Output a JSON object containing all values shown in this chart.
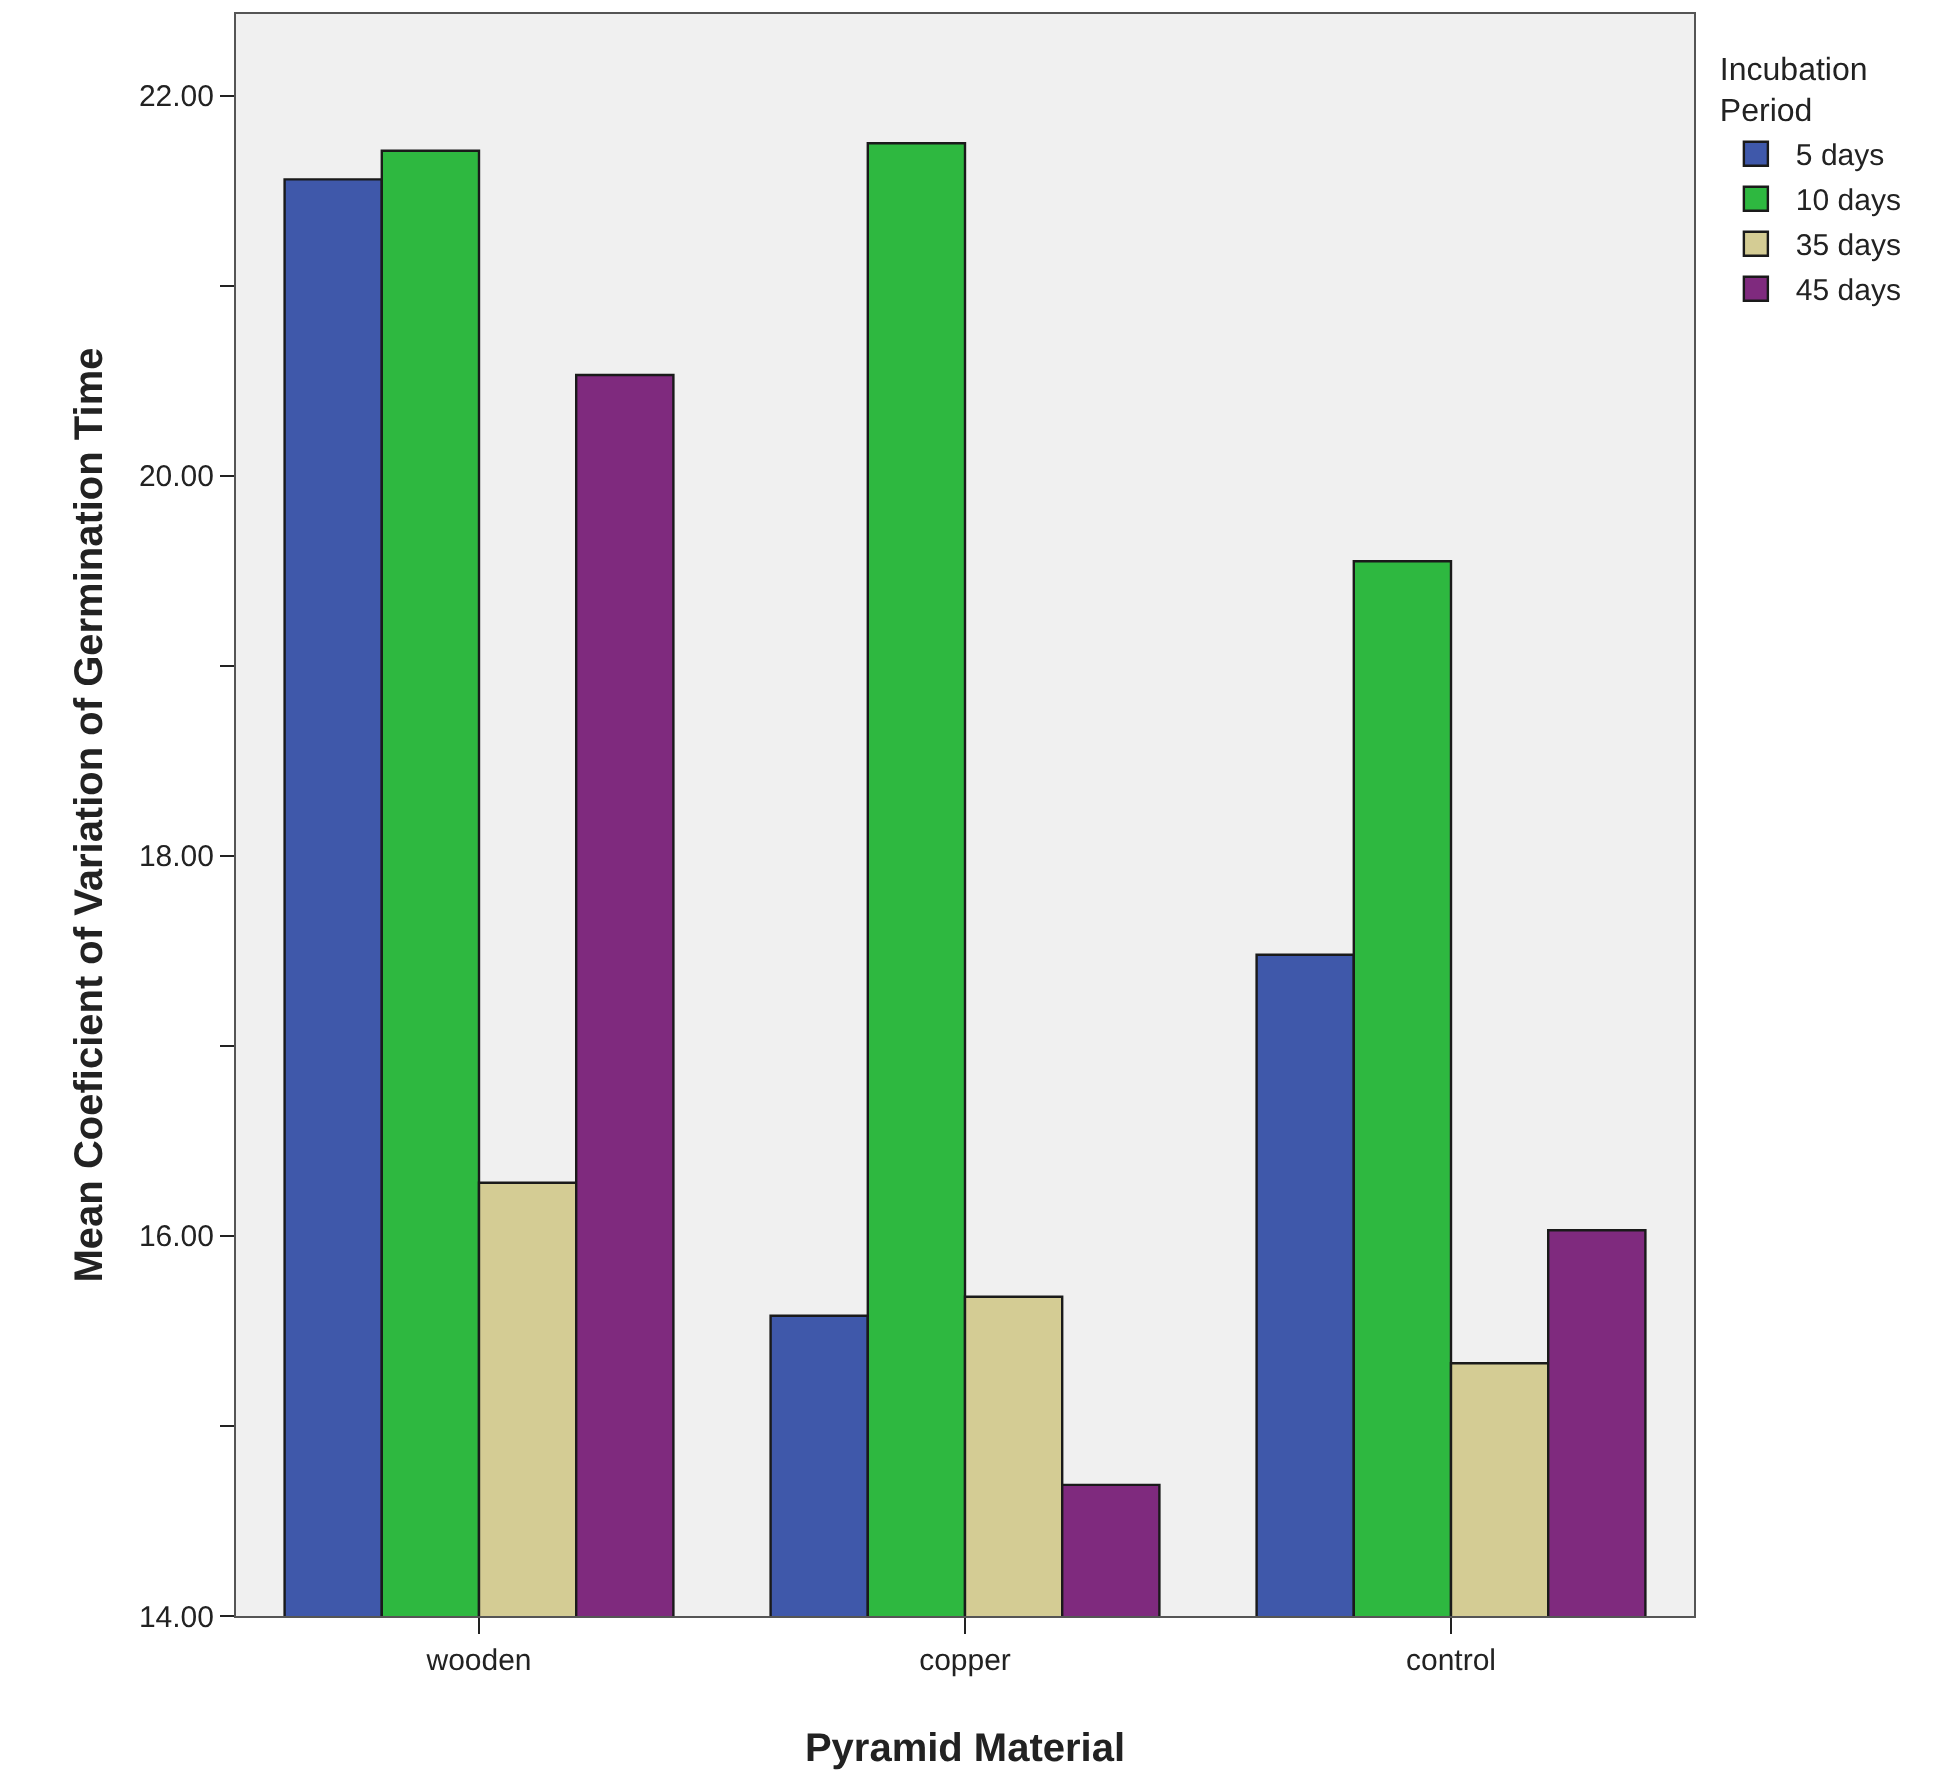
{
  "chart_data": {
    "type": "bar",
    "xlabel": "Pyramid Material",
    "ylabel": "Mean Coeficient of Variation of Germination Time",
    "legend_title": "Incubation Period",
    "categories": [
      "wooden",
      "copper",
      "control"
    ],
    "series": [
      {
        "name": "5 days",
        "color": "#3f58aa",
        "values": [
          21.56,
          15.58,
          17.48
        ]
      },
      {
        "name": "10 days",
        "color": "#2eb840",
        "values": [
          21.71,
          21.75,
          19.55
        ]
      },
      {
        "name": "35 days",
        "color": "#d4cc94",
        "values": [
          16.28,
          15.68,
          15.33
        ]
      },
      {
        "name": "45 days",
        "color": "#7f2a7e",
        "values": [
          20.53,
          14.69,
          16.03
        ]
      }
    ],
    "ylim": [
      14,
      22.43
    ],
    "yticks": [
      {
        "value": 14,
        "label": "14.00"
      },
      {
        "value": 15,
        "label": null
      },
      {
        "value": 16,
        "label": "16.00"
      },
      {
        "value": 17,
        "label": null
      },
      {
        "value": 18,
        "label": "18.00"
      },
      {
        "value": 19,
        "label": null
      },
      {
        "value": 20,
        "label": "20.00"
      },
      {
        "value": 21,
        "label": null
      },
      {
        "value": 22,
        "label": "22.00"
      }
    ],
    "grid": false,
    "legend": "top right"
  }
}
